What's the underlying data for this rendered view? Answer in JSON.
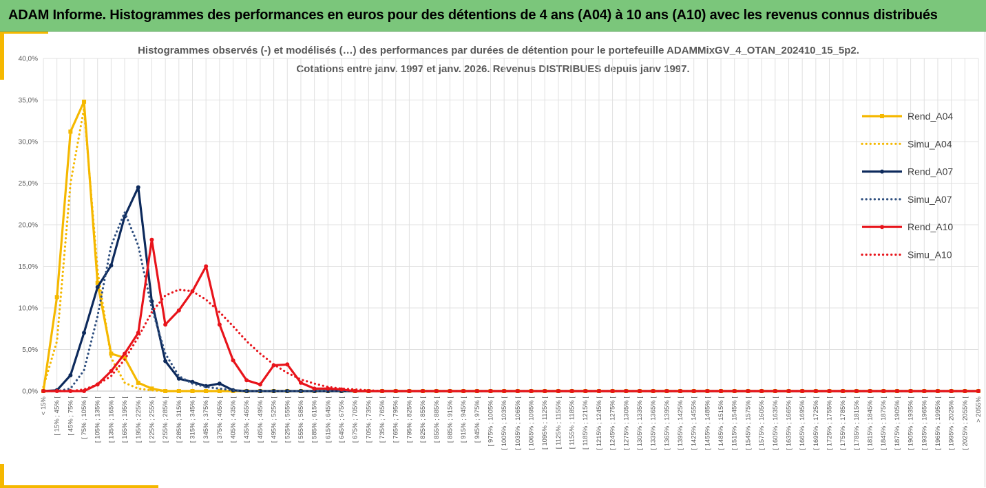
{
  "header": {
    "title": "ADAM Informe. Histogrammes des performances en euros pour des détentions de 4 ans (A04) à 10 ans (A10) avec les revenus connus distribués"
  },
  "chart_data": {
    "type": "line",
    "title": "Histogrammes observés (-) et modélisés (…) des performances par durées de détention pour le portefeuille ADAMMixGV_4_OTAN_202410_15_5p2.",
    "subtitle": "Cotations entre janv. 1997 et janv. 2026. Revenus DISTRIBUES depuis janv 1997.",
    "ylim": [
      0,
      40
    ],
    "y_ticks": [
      "0,0%",
      "5,0%",
      "10,0%",
      "15,0%",
      "20,0%",
      "25,0%",
      "30,0%",
      "35,0%",
      "40,0%"
    ],
    "grid": true,
    "legend_position": "right",
    "categories": [
      "< 15%",
      "[ 15% ; 45% [",
      "[ 45% ; 75% [",
      "[ 75% ; 105% [",
      "[ 105% ; 135% [",
      "[ 135% ; 165% [",
      "[ 165% ; 195% [",
      "[ 195% ; 225% [",
      "[ 225% ; 255% [",
      "[ 255% ; 285% [",
      "[ 285% ; 315% [",
      "[ 315% ; 345% [",
      "[ 345% ; 375% [",
      "[ 375% ; 405% [",
      "[ 405% ; 435% [",
      "[ 435% ; 465% [",
      "[ 465% ; 495% [",
      "[ 495% ; 525% [",
      "[ 525% ; 555% [",
      "[ 555% ; 585% [",
      "[ 585% ; 615% [",
      "[ 615% ; 645% [",
      "[ 645% ; 675% [",
      "[ 675% ; 705% [",
      "[ 705% ; 735% [",
      "[ 735% ; 765% [",
      "[ 765% ; 795% [",
      "[ 795% ; 825% [",
      "[ 825% ; 855% [",
      "[ 855% ; 885% [",
      "[ 885% ; 915% [",
      "[ 915% ; 945% [",
      "[ 945% ; 975% [",
      "[ 975% ; 1005% [",
      "[ 1005% ; 1035% [",
      "[ 1035% ; 1065% [",
      "[ 1065% ; 1095% [",
      "[ 1095% ; 1125% [",
      "[ 1125% ; 1155% [",
      "[ 1155% ; 1185% [",
      "[ 1185% ; 1215% [",
      "[ 1215% ; 1245% [",
      "[ 1245% ; 1275% [",
      "[ 1275% ; 1305% [",
      "[ 1305% ; 1335% [",
      "[ 1335% ; 1365% [",
      "[ 1365% ; 1395% [",
      "[ 1395% ; 1425% [",
      "[ 1425% ; 1455% [",
      "[ 1455% ; 1485% [",
      "[ 1485% ; 1515% [",
      "[ 1515% ; 1545% [",
      "[ 1545% ; 1575% [",
      "[ 1575% ; 1605% [",
      "[ 1605% ; 1635% [",
      "[ 1635% ; 1665% [",
      "[ 1665% ; 1695% [",
      "[ 1695% ; 1725% [",
      "[ 1725% ; 1755% [",
      "[ 1755% ; 1785% [",
      "[ 1785% ; 1815% [",
      "[ 1815% ; 1845% [",
      "[ 1845% ; 1875% [",
      "[ 1875% ; 1905% [",
      "[ 1905% ; 1935% [",
      "[ 1935% ; 1965% [",
      "[ 1965% ; 1995% [",
      "[ 1995% ; 2025% [",
      "[ 2025% ; 2055% [",
      "> 2055%"
    ],
    "series": [
      {
        "name": "Rend_A04",
        "color": "#f5b800",
        "style": "solid",
        "marker": "square",
        "values": [
          0,
          11.3,
          31.2,
          34.8,
          13.0,
          4.5,
          4.0,
          1.0,
          0.3,
          0,
          0,
          0,
          0,
          0,
          0,
          0,
          0,
          0,
          0,
          0,
          0,
          0,
          0,
          0,
          0,
          0,
          0,
          0,
          0,
          0,
          0,
          0,
          0,
          0,
          0,
          0,
          0,
          0,
          0,
          0,
          0,
          0,
          0,
          0,
          0,
          0,
          0,
          0,
          0,
          0,
          0,
          0,
          0,
          0,
          0,
          0,
          0,
          0,
          0,
          0,
          0,
          0,
          0,
          0,
          0,
          0,
          0,
          0,
          0,
          0
        ]
      },
      {
        "name": "Simu_A04",
        "color": "#f5b800",
        "style": "dotted",
        "marker": "none",
        "values": [
          0.5,
          6.0,
          25.0,
          34.0,
          14.5,
          4.0,
          1.0,
          0.3,
          0.1,
          0,
          0,
          0,
          0,
          0,
          0,
          0,
          0,
          0,
          0,
          0,
          0,
          0,
          0,
          0,
          0,
          0,
          0,
          0,
          0,
          0,
          0,
          0,
          0,
          0,
          0,
          0,
          0,
          0,
          0,
          0,
          0,
          0,
          0,
          0,
          0,
          0,
          0,
          0,
          0,
          0,
          0,
          0,
          0,
          0,
          0,
          0,
          0,
          0,
          0,
          0,
          0,
          0,
          0,
          0,
          0,
          0,
          0,
          0,
          0,
          0
        ]
      },
      {
        "name": "Rend_A07",
        "color": "#0d2a5c",
        "style": "solid",
        "marker": "circle",
        "values": [
          0,
          0.1,
          1.9,
          7.0,
          12.5,
          15.1,
          21.0,
          24.5,
          10.8,
          3.6,
          1.5,
          1.1,
          0.6,
          0.9,
          0.1,
          0,
          0,
          0,
          0,
          0,
          0,
          0,
          0,
          0,
          0,
          0,
          0,
          0,
          0,
          0,
          0,
          0,
          0,
          0,
          0,
          0,
          0,
          0,
          0,
          0,
          0,
          0,
          0,
          0,
          0,
          0,
          0,
          0,
          0,
          0,
          0,
          0,
          0,
          0,
          0,
          0,
          0,
          0,
          0,
          0,
          0,
          0,
          0,
          0,
          0,
          0,
          0,
          0,
          0,
          0
        ]
      },
      {
        "name": "Simu_A07",
        "color": "#2f4f7f",
        "style": "dotted",
        "marker": "none",
        "values": [
          0,
          0,
          0.3,
          2.5,
          9.0,
          17.5,
          21.5,
          17.5,
          10.0,
          4.5,
          1.8,
          0.9,
          0.5,
          0.3,
          0.1,
          0,
          0,
          0,
          0,
          0,
          0,
          0,
          0,
          0,
          0,
          0,
          0,
          0,
          0,
          0,
          0,
          0,
          0,
          0,
          0,
          0,
          0,
          0,
          0,
          0,
          0,
          0,
          0,
          0,
          0,
          0,
          0,
          0,
          0,
          0,
          0,
          0,
          0,
          0,
          0,
          0,
          0,
          0,
          0,
          0,
          0,
          0,
          0,
          0,
          0,
          0,
          0,
          0,
          0,
          0
        ]
      },
      {
        "name": "Rend_A10",
        "color": "#e8141b",
        "style": "solid",
        "marker": "circle",
        "values": [
          0,
          0,
          0,
          0,
          0.8,
          2.4,
          4.5,
          7.0,
          18.2,
          8.0,
          9.7,
          12.0,
          15.0,
          8.0,
          3.7,
          1.3,
          0.8,
          3.1,
          3.2,
          1.0,
          0.3,
          0.3,
          0.2,
          0,
          0,
          0,
          0,
          0,
          0,
          0,
          0,
          0,
          0,
          0,
          0,
          0,
          0,
          0,
          0,
          0,
          0,
          0,
          0,
          0,
          0,
          0,
          0,
          0,
          0,
          0,
          0,
          0,
          0,
          0,
          0,
          0,
          0,
          0,
          0,
          0,
          0,
          0,
          0,
          0,
          0,
          0,
          0,
          0,
          0,
          0
        ]
      },
      {
        "name": "Simu_A10",
        "color": "#e8141b",
        "style": "dotted",
        "marker": "none",
        "values": [
          0,
          0,
          0,
          0.2,
          0.8,
          1.8,
          3.8,
          6.5,
          9.5,
          11.5,
          12.2,
          12.0,
          11.0,
          9.5,
          7.8,
          6.0,
          4.5,
          3.2,
          2.2,
          1.4,
          0.9,
          0.5,
          0.3,
          0.2,
          0.1,
          0,
          0,
          0,
          0,
          0,
          0,
          0,
          0,
          0,
          0,
          0,
          0,
          0,
          0,
          0,
          0,
          0,
          0,
          0,
          0,
          0,
          0,
          0,
          0,
          0,
          0,
          0,
          0,
          0,
          0,
          0,
          0,
          0,
          0,
          0,
          0,
          0,
          0,
          0,
          0,
          0,
          0,
          0,
          0,
          0
        ]
      }
    ]
  }
}
